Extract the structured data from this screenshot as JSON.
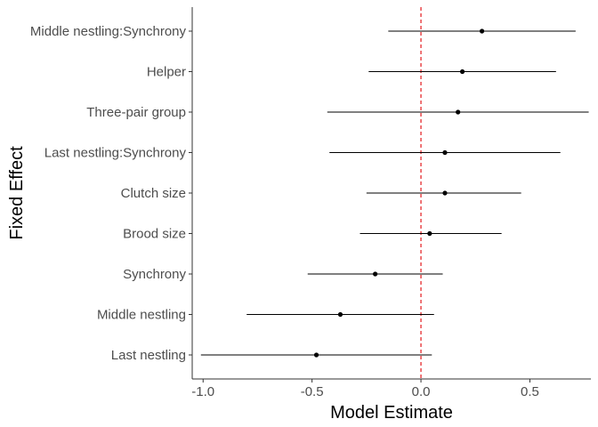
{
  "chart_data": {
    "type": "scatter",
    "subtype": "forest-plot",
    "title": "",
    "xlabel": "Model Estimate",
    "ylabel": "Fixed Effect",
    "xlim": [
      -1.05,
      0.78
    ],
    "xticks": [
      -1.0,
      -0.5,
      0.0,
      0.5
    ],
    "xtick_labels": [
      "-1.0",
      "-0.5",
      "0.0",
      "0.5"
    ],
    "reference_line": {
      "x": 0,
      "style": "dashed",
      "color": "#e31a1c"
    },
    "grid": false,
    "legend": "none",
    "colors": {
      "point": "#000000",
      "interval": "#000000",
      "axis": "#333333"
    },
    "categories": [
      "Middle nestling:Synchrony",
      "Helper",
      "Three-pair group",
      "Last nestling:Synchrony",
      "Clutch size",
      "Brood size",
      "Synchrony",
      "Middle nestling",
      "Last nestling"
    ],
    "estimates": [
      0.28,
      0.19,
      0.17,
      0.11,
      0.11,
      0.04,
      -0.21,
      -0.37,
      -0.48
    ],
    "lower": [
      -0.15,
      -0.24,
      -0.43,
      -0.42,
      -0.25,
      -0.28,
      -0.52,
      -0.8,
      -1.01
    ],
    "upper": [
      0.71,
      0.62,
      0.77,
      0.64,
      0.46,
      0.37,
      0.1,
      0.06,
      0.05
    ]
  }
}
